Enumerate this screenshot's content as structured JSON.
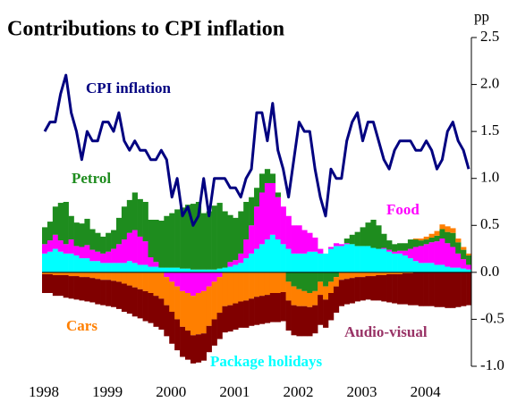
{
  "chart_data": {
    "type": "bar",
    "title": "Contributions to CPI inflation",
    "y_unit": "pp",
    "categories": [
      "1998",
      null,
      null,
      null,
      null,
      null,
      null,
      null,
      null,
      null,
      null,
      null,
      "1999",
      null,
      null,
      null,
      null,
      null,
      null,
      null,
      null,
      null,
      null,
      null,
      "2000",
      null,
      null,
      null,
      null,
      null,
      null,
      null,
      null,
      null,
      null,
      null,
      "2001",
      null,
      null,
      null,
      null,
      null,
      null,
      null,
      null,
      null,
      null,
      null,
      "2002",
      null,
      null,
      null,
      null,
      null,
      null,
      null,
      null,
      null,
      null,
      null,
      "2003",
      null,
      null,
      null,
      null,
      null,
      null,
      null,
      null,
      null,
      null,
      null,
      "2004",
      null,
      null,
      null,
      null,
      null,
      null,
      null,
      null
    ],
    "ylim": [
      -1.0,
      2.5
    ],
    "yticks": [
      {
        "value": 2.5,
        "label": "2.5"
      },
      {
        "value": 2.0,
        "label": "2.0"
      },
      {
        "value": 1.5,
        "label": "1.5"
      },
      {
        "value": 1.0,
        "label": "1.0"
      },
      {
        "value": 0.5,
        "label": "0.5"
      },
      {
        "value": 0.0,
        "label": "0.0"
      },
      {
        "value": -0.5,
        "label": "-0.5"
      },
      {
        "value": -1.0,
        "label": "-1.0"
      }
    ],
    "stacked": true,
    "series": [
      {
        "name": "Package holidays",
        "color": "#00ffff",
        "values": [
          0.2,
          0.22,
          0.25,
          0.22,
          0.2,
          0.2,
          0.18,
          0.15,
          0.15,
          0.12,
          0.12,
          0.1,
          0.1,
          0.1,
          0.1,
          0.1,
          0.12,
          0.1,
          0.08,
          0.08,
          0.06,
          0.06,
          0.05,
          0.05,
          0.05,
          0.05,
          0.04,
          0.04,
          0.03,
          0.03,
          0.03,
          0.03,
          0.03,
          0.04,
          0.05,
          0.06,
          0.08,
          0.1,
          0.15,
          0.2,
          0.25,
          0.3,
          0.35,
          0.4,
          0.35,
          0.3,
          0.25,
          0.2,
          0.2,
          0.2,
          0.22,
          0.22,
          0.2,
          0.2,
          0.25,
          0.28,
          0.28,
          0.3,
          0.3,
          0.28,
          0.28,
          0.28,
          0.26,
          0.25,
          0.25,
          0.22,
          0.2,
          0.2,
          0.18,
          0.15,
          0.12,
          0.1,
          0.1,
          0.1,
          0.08,
          0.08,
          0.06,
          0.05,
          0.05,
          0.04,
          0.03
        ]
      },
      {
        "name": "Food",
        "color": "#ff00ff",
        "values": [
          0.1,
          0.12,
          0.15,
          0.12,
          0.1,
          0.15,
          0.1,
          0.12,
          0.14,
          0.12,
          0.1,
          0.1,
          0.12,
          0.15,
          0.2,
          0.25,
          0.3,
          0.35,
          0.3,
          0.25,
          0.1,
          0.05,
          0.0,
          -0.05,
          -0.1,
          -0.15,
          -0.2,
          -0.22,
          -0.25,
          -0.22,
          -0.2,
          -0.15,
          -0.1,
          -0.05,
          0.0,
          0.05,
          0.05,
          0.1,
          0.2,
          0.3,
          0.45,
          0.55,
          0.6,
          0.55,
          0.45,
          0.4,
          0.35,
          0.3,
          0.3,
          0.25,
          0.2,
          0.15,
          0.05,
          0.0,
          0.02,
          0.03,
          0.02,
          0.01,
          0.0,
          0.0,
          0.0,
          0.0,
          0.0,
          0.0,
          0.01,
          0.02,
          0.02,
          0.03,
          0.05,
          0.1,
          0.15,
          0.18,
          0.2,
          0.22,
          0.25,
          0.28,
          0.25,
          0.22,
          0.15,
          0.1,
          0.05
        ]
      },
      {
        "name": "Petrol",
        "color": "#1e8c1e",
        "values": [
          0.18,
          0.2,
          0.3,
          0.4,
          0.45,
          0.25,
          0.25,
          0.25,
          0.28,
          0.22,
          0.2,
          0.18,
          0.2,
          0.2,
          0.28,
          0.35,
          0.35,
          0.4,
          0.4,
          0.42,
          0.4,
          0.45,
          0.5,
          0.55,
          0.58,
          0.62,
          0.65,
          0.68,
          0.7,
          0.72,
          0.6,
          0.62,
          0.68,
          0.7,
          0.6,
          0.5,
          0.45,
          0.45,
          0.4,
          0.3,
          0.2,
          0.2,
          0.15,
          0.1,
          0.05,
          0.0,
          -0.1,
          -0.15,
          -0.18,
          -0.2,
          -0.22,
          -0.2,
          -0.1,
          -0.15,
          -0.1,
          -0.05,
          0.0,
          0.05,
          0.1,
          0.15,
          0.2,
          0.25,
          0.3,
          0.25,
          0.15,
          0.1,
          0.08,
          0.08,
          0.08,
          0.1,
          0.08,
          0.06,
          0.05,
          0.05,
          0.06,
          0.1,
          0.12,
          0.15,
          0.12,
          0.1,
          0.1
        ]
      },
      {
        "name": "Cars",
        "color": "#ff7f00",
        "values": [
          -0.02,
          -0.02,
          -0.03,
          -0.03,
          -0.03,
          -0.04,
          -0.04,
          -0.05,
          -0.05,
          -0.06,
          -0.07,
          -0.08,
          -0.08,
          -0.09,
          -0.1,
          -0.12,
          -0.14,
          -0.16,
          -0.18,
          -0.2,
          -0.22,
          -0.25,
          -0.28,
          -0.3,
          -0.32,
          -0.35,
          -0.38,
          -0.4,
          -0.42,
          -0.44,
          -0.45,
          -0.42,
          -0.4,
          -0.38,
          -0.36,
          -0.35,
          -0.33,
          -0.31,
          -0.3,
          -0.28,
          -0.26,
          -0.25,
          -0.24,
          -0.22,
          -0.22,
          -0.21,
          -0.2,
          -0.2,
          -0.18,
          -0.16,
          -0.15,
          -0.15,
          -0.14,
          -0.14,
          -0.12,
          -0.1,
          -0.08,
          -0.07,
          -0.06,
          -0.05,
          -0.05,
          -0.04,
          -0.04,
          -0.03,
          -0.03,
          -0.02,
          -0.02,
          -0.02,
          -0.01,
          -0.01,
          0.01,
          0.02,
          0.03,
          0.04,
          0.05,
          0.05,
          0.06,
          0.05,
          0.04,
          0.03,
          0.02
        ]
      },
      {
        "name": "Audio-visual",
        "color": "#800000",
        "label_color": "#993366",
        "values": [
          -0.2,
          -0.2,
          -0.22,
          -0.22,
          -0.24,
          -0.24,
          -0.25,
          -0.25,
          -0.26,
          -0.26,
          -0.27,
          -0.27,
          -0.28,
          -0.28,
          -0.29,
          -0.3,
          -0.3,
          -0.31,
          -0.31,
          -0.32,
          -0.32,
          -0.33,
          -0.33,
          -0.33,
          -0.34,
          -0.33,
          -0.32,
          -0.31,
          -0.3,
          -0.3,
          -0.29,
          -0.28,
          -0.28,
          -0.28,
          -0.28,
          -0.28,
          -0.28,
          -0.28,
          -0.29,
          -0.29,
          -0.3,
          -0.3,
          -0.3,
          -0.31,
          -0.31,
          -0.31,
          -0.32,
          -0.32,
          -0.32,
          -0.32,
          -0.31,
          -0.3,
          -0.32,
          -0.3,
          -0.29,
          -0.28,
          -0.28,
          -0.27,
          -0.27,
          -0.26,
          -0.25,
          -0.25,
          -0.26,
          -0.27,
          -0.28,
          -0.3,
          -0.31,
          -0.32,
          -0.33,
          -0.34,
          -0.35,
          -0.36,
          -0.36,
          -0.36,
          -0.37,
          -0.37,
          -0.38,
          -0.38,
          -0.37,
          -0.36,
          -0.35
        ]
      },
      {
        "name": "CPI inflation",
        "type": "line",
        "color": "#000080",
        "values": [
          1.5,
          1.6,
          1.6,
          1.9,
          2.1,
          1.7,
          1.5,
          1.2,
          1.5,
          1.4,
          1.4,
          1.6,
          1.6,
          1.5,
          1.7,
          1.4,
          1.3,
          1.4,
          1.3,
          1.3,
          1.2,
          1.2,
          1.3,
          1.2,
          0.8,
          1.0,
          0.6,
          0.7,
          0.5,
          0.6,
          1.0,
          0.6,
          1.0,
          1.0,
          1.0,
          0.9,
          0.9,
          0.8,
          1.0,
          1.1,
          1.7,
          1.7,
          1.4,
          1.8,
          1.3,
          1.1,
          0.8,
          1.2,
          1.6,
          1.5,
          1.5,
          1.1,
          0.8,
          0.6,
          1.1,
          1.0,
          1.0,
          1.4,
          1.6,
          1.7,
          1.4,
          1.6,
          1.6,
          1.4,
          1.2,
          1.1,
          1.3,
          1.4,
          1.4,
          1.4,
          1.3,
          1.3,
          1.4,
          1.3,
          1.1,
          1.2,
          1.5,
          1.6,
          1.4,
          1.3,
          1.1
        ]
      }
    ]
  }
}
